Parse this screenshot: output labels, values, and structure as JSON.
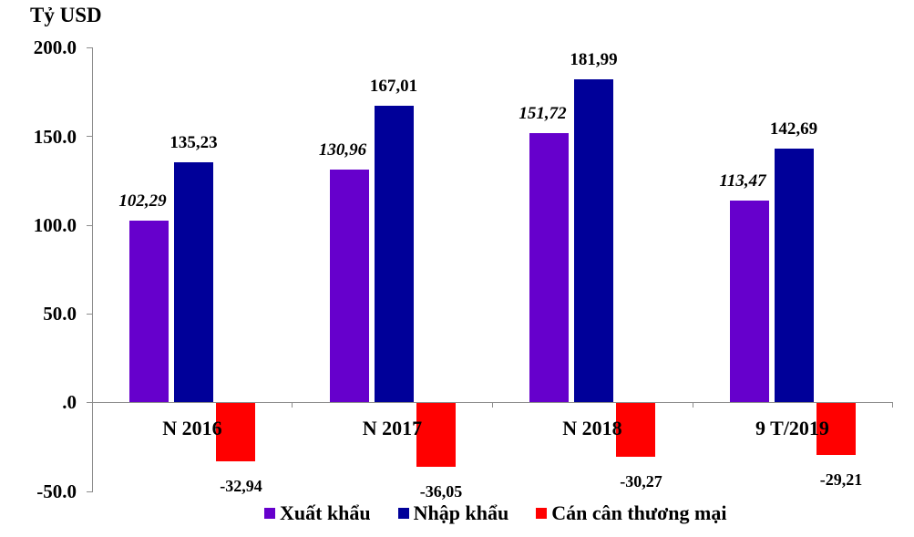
{
  "chart_data": {
    "type": "bar",
    "title": "",
    "ylabel": "Tỷ USD",
    "xlabel": "",
    "ylim": [
      -50,
      200
    ],
    "yticks": [
      "200.0",
      "150.0",
      "100.0",
      "50.0",
      ".0",
      "-50.0"
    ],
    "ytick_values": [
      200,
      150,
      100,
      50,
      0,
      -50
    ],
    "grid": false,
    "legend_position": "bottom",
    "categories": [
      "N 2016",
      "N 2017",
      "N 2018",
      "9 T/2019"
    ],
    "series": [
      {
        "name": "Xuất khẩu",
        "color": "#6600CC",
        "values": [
          102.29,
          130.96,
          151.72,
          113.47
        ],
        "labels": [
          "102,29",
          "130,96",
          "151,72",
          "113,47"
        ]
      },
      {
        "name": "Nhập khẩu",
        "color": "#000099",
        "values": [
          135.23,
          167.01,
          181.99,
          142.69
        ],
        "labels": [
          "135,23",
          "167,01",
          "181,99",
          "142,69"
        ]
      },
      {
        "name": "Cán cân thương mại",
        "color": "#FF0000",
        "values": [
          -32.94,
          -36.05,
          -30.27,
          -29.21
        ],
        "labels": [
          "-32,94",
          "-36,05",
          "-30,27",
          "-29,21"
        ]
      }
    ]
  }
}
